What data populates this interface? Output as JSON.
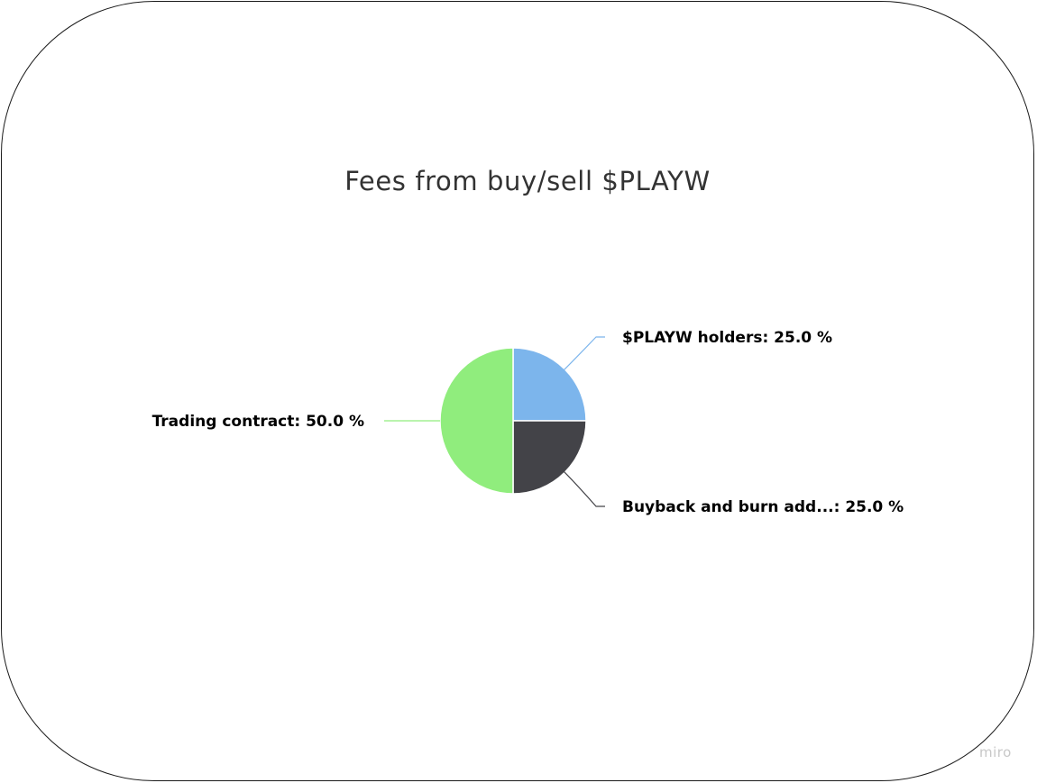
{
  "chart_data": {
    "type": "pie",
    "title": "Fees from buy/sell $PLAYW",
    "slices": [
      {
        "label": "$PLAYW holders",
        "value": 25.0,
        "display": "$PLAYW holders: 25.0 %",
        "color": "#7cb5ec"
      },
      {
        "label": "Buyback and burn add...",
        "value": 25.0,
        "display": "Buyback and burn add...: 25.0 %",
        "color": "#434348"
      },
      {
        "label": "Trading contract",
        "value": 50.0,
        "display": "Trading contract: 50.0 %",
        "color": "#90ed7d"
      }
    ],
    "start_angle": "12 o'clock",
    "direction": "clockwise",
    "data_labels": "outside with connector lines",
    "legend": "none"
  },
  "watermark": "miro"
}
